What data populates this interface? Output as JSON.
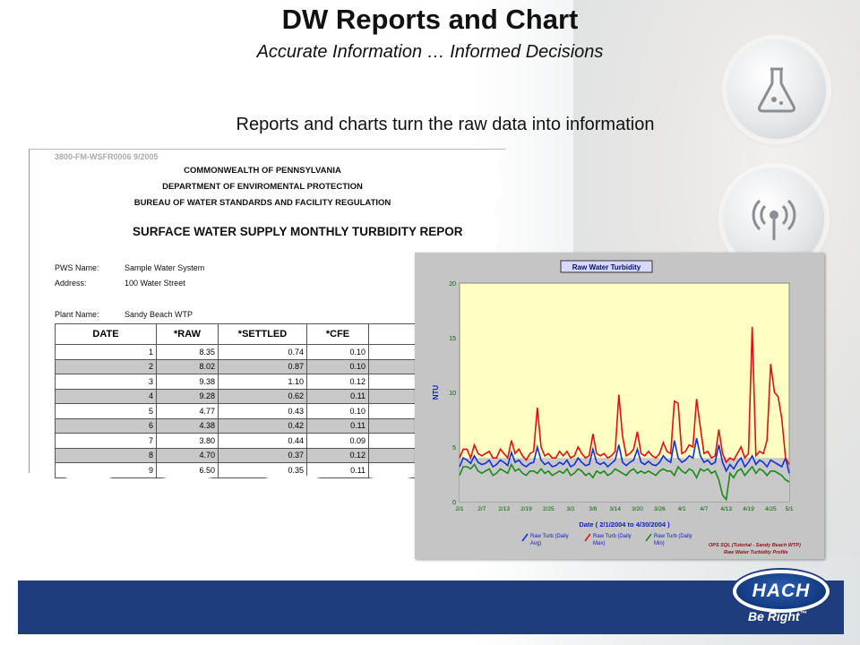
{
  "slide": {
    "title": "DW Reports and Chart",
    "subtitle": "Accurate Information … Informed Decisions",
    "lead": "Reports and charts turn the raw data into information",
    "accent_blue": "#1f3c7d"
  },
  "report": {
    "code": "3800-FM-WSFR0006  9/2005",
    "header_lines": [
      "COMMONWEALTH OF PENNSYLVANIA",
      "DEPARTMENT OF ENVIROMENTAL PROTECTION",
      "BUREAU OF WATER STANDARDS AND FACILITY REGULATION"
    ],
    "report_title": "SURFACE WATER SUPPLY MONTHLY TURBIDITY REPOR",
    "pws_label": "PWS Name:",
    "pws_value": "Sample Water System",
    "address_label": "Address:",
    "address_value": "100 Water Street",
    "plant_label": "Plant Name:",
    "plant_value": "Sandy Beach WTP",
    "columns": [
      "DATE",
      "*RAW",
      "*SETTLED",
      "*CFE"
    ],
    "rows": [
      [
        "1",
        "8.35",
        "0.74",
        "0.10"
      ],
      [
        "2",
        "8.02",
        "0.87",
        "0.10"
      ],
      [
        "3",
        "9.38",
        "1.10",
        "0.12"
      ],
      [
        "4",
        "9.28",
        "0.62",
        "0.11"
      ],
      [
        "5",
        "4.77",
        "0.43",
        "0.10"
      ],
      [
        "6",
        "4.38",
        "0.42",
        "0.11"
      ],
      [
        "7",
        "3.80",
        "0.44",
        "0.09"
      ],
      [
        "8",
        "4.70",
        "0.37",
        "0.12"
      ],
      [
        "9",
        "6.50",
        "0.35",
        "0.11"
      ]
    ]
  },
  "chart_data": {
    "type": "line",
    "title": "Raw Water Turbidity",
    "ylabel": "NTU",
    "xlabel": "Date  ( 2/1/2004  to  4/30/2004 )",
    "ylim": [
      0,
      20
    ],
    "yticks": [
      "0",
      "5",
      "10",
      "15",
      "20"
    ],
    "xticks": [
      "2/1",
      "2/7",
      "2/13",
      "2/19",
      "2/25",
      "3/2",
      "3/8",
      "3/14",
      "3/20",
      "3/26",
      "4/1",
      "4/7",
      "4/13",
      "4/19",
      "4/25",
      "5/1"
    ],
    "threshold": 4,
    "plot_bg": "#ffffc4",
    "grid": false,
    "x_days": [
      0,
      1,
      2,
      3,
      4,
      5,
      6,
      7,
      8,
      9,
      10,
      11,
      12,
      13,
      14,
      15,
      16,
      17,
      18,
      19,
      20,
      21,
      22,
      23,
      24,
      25,
      26,
      27,
      28,
      29,
      30,
      31,
      32,
      33,
      34,
      35,
      36,
      37,
      38,
      39,
      40,
      41,
      42,
      43,
      44,
      45,
      46,
      47,
      48,
      49,
      50,
      51,
      52,
      53,
      54,
      55,
      56,
      57,
      58,
      59,
      60,
      61,
      62,
      63,
      64,
      65,
      66,
      67,
      68,
      69,
      70,
      71,
      72,
      73,
      74,
      75,
      76,
      77,
      78,
      79,
      80,
      81,
      82,
      83,
      84,
      85,
      86,
      87,
      88,
      89
    ],
    "series": [
      {
        "name": "Raw Turb (Daily Avg)",
        "color": "#1030e0",
        "values": [
          3.2,
          4.0,
          3.8,
          3.5,
          4.2,
          3.6,
          3.4,
          3.5,
          3.8,
          3.2,
          3.4,
          3.8,
          3.6,
          3.3,
          4.5,
          3.6,
          3.8,
          3.4,
          3.2,
          3.5,
          3.6,
          5.0,
          3.8,
          3.4,
          3.6,
          3.2,
          3.3,
          3.6,
          3.4,
          3.8,
          3.2,
          3.4,
          4.0,
          3.6,
          3.3,
          3.4,
          4.8,
          3.6,
          3.4,
          3.6,
          3.2,
          3.5,
          3.8,
          5.2,
          3.6,
          3.3,
          3.6,
          3.8,
          4.8,
          3.6,
          3.4,
          3.7,
          3.4,
          3.3,
          3.6,
          4.2,
          3.8,
          3.6,
          5.6,
          4.0,
          3.6,
          3.8,
          4.2,
          4.0,
          5.8,
          4.2,
          3.6,
          3.8,
          3.4,
          3.6,
          5.2,
          3.6,
          2.8,
          3.4,
          3.0,
          3.6,
          4.0,
          3.2,
          3.6,
          4.2,
          3.4,
          3.8,
          3.6,
          3.2,
          3.8,
          3.6,
          3.4,
          3.2,
          4.0,
          2.6
        ]
      },
      {
        "name": "Raw Turb (Daily Max)",
        "color": "#e01010",
        "values": [
          4.0,
          4.8,
          4.8,
          4.0,
          5.2,
          4.4,
          4.2,
          4.4,
          4.6,
          4.0,
          4.0,
          4.8,
          4.4,
          4.0,
          5.6,
          4.4,
          4.8,
          4.2,
          3.8,
          4.4,
          4.6,
          8.6,
          5.0,
          4.2,
          4.4,
          4.0,
          4.0,
          4.6,
          4.2,
          4.6,
          4.0,
          4.2,
          5.0,
          4.4,
          4.0,
          4.2,
          6.2,
          4.4,
          4.2,
          4.4,
          4.0,
          4.2,
          4.6,
          9.8,
          6.0,
          4.2,
          4.4,
          4.8,
          6.4,
          4.4,
          4.2,
          4.6,
          4.2,
          4.0,
          4.4,
          5.4,
          4.6,
          4.4,
          9.2,
          9.0,
          4.4,
          4.6,
          5.2,
          5.0,
          9.4,
          6.8,
          4.4,
          4.6,
          4.0,
          4.2,
          6.6,
          4.4,
          3.6,
          4.0,
          3.8,
          4.4,
          5.0,
          4.0,
          4.4,
          16.0,
          4.2,
          4.6,
          4.4,
          5.6,
          12.6,
          10.0,
          9.6,
          7.6,
          4.0,
          3.4
        ]
      },
      {
        "name": "Raw Turb (Daily Min)",
        "color": "#1a8a1a",
        "values": [
          2.4,
          3.2,
          3.2,
          3.0,
          3.4,
          2.8,
          2.6,
          2.8,
          3.0,
          2.4,
          2.6,
          3.0,
          2.8,
          2.6,
          3.4,
          2.8,
          3.0,
          2.6,
          2.4,
          2.8,
          2.8,
          2.6,
          3.0,
          2.6,
          2.8,
          2.4,
          2.6,
          2.8,
          2.6,
          3.0,
          2.4,
          2.6,
          3.0,
          2.8,
          2.4,
          2.6,
          2.2,
          2.8,
          2.6,
          2.8,
          2.4,
          2.6,
          3.0,
          2.8,
          2.6,
          2.4,
          2.8,
          3.0,
          2.6,
          2.8,
          2.6,
          2.8,
          2.6,
          2.4,
          2.8,
          3.0,
          2.8,
          2.8,
          2.4,
          3.2,
          2.8,
          2.6,
          3.0,
          2.8,
          2.2,
          3.0,
          2.8,
          3.0,
          2.6,
          2.8,
          2.0,
          0.6,
          0.2,
          2.6,
          2.2,
          2.8,
          3.0,
          2.4,
          2.8,
          3.2,
          2.6,
          3.0,
          2.8,
          2.4,
          2.8,
          2.8,
          2.6,
          2.4,
          2.0,
          1.8
        ]
      }
    ],
    "legend": [
      "Raw Turb (Daily Avg)",
      "Raw Turb (Daily Max)",
      "Raw Turb (Daily Min)"
    ],
    "footnote_line1": "OPS SQL (Tutorial - Sandy Beach WTP)",
    "footnote_line2": "Raw Water Turbidity Profile"
  },
  "footer": {
    "logo": "HACH",
    "tagline": "Be Right",
    "trademark": "™"
  },
  "icons": [
    "flask-icon",
    "signal-icon"
  ]
}
